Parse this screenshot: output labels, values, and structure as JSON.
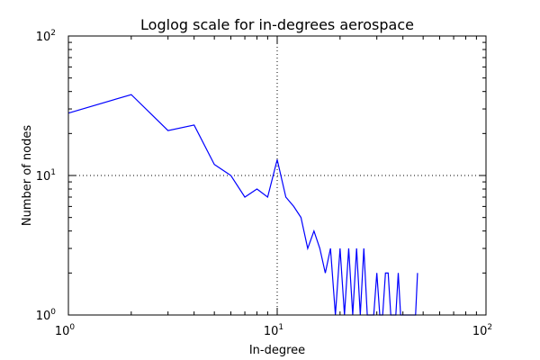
{
  "chart_data": {
    "type": "line",
    "title": "Loglog scale for in-degrees aerospace",
    "xlabel": "In-degree",
    "ylabel": "Number of nodes",
    "xscale": "log",
    "yscale": "log",
    "xlim": [
      1,
      100
    ],
    "ylim": [
      1,
      100
    ],
    "grid": "major ticks, dotted",
    "x_ticks": [
      {
        "value": 1,
        "base": "10",
        "exp": "0"
      },
      {
        "value": 10,
        "base": "10",
        "exp": "1"
      },
      {
        "value": 100,
        "base": "10",
        "exp": "2"
      }
    ],
    "y_ticks": [
      {
        "value": 1,
        "base": "10",
        "exp": "0"
      },
      {
        "value": 10,
        "base": "10",
        "exp": "1"
      },
      {
        "value": 100,
        "base": "10",
        "exp": "2"
      }
    ],
    "series": [
      {
        "color": "#0000ff",
        "points": [
          [
            1,
            28
          ],
          [
            2,
            38
          ],
          [
            3,
            21
          ],
          [
            4,
            23
          ],
          [
            5,
            12
          ],
          [
            6,
            10
          ],
          [
            7,
            7
          ],
          [
            8,
            8
          ],
          [
            9,
            7
          ],
          [
            10,
            13
          ],
          [
            11,
            7
          ],
          [
            12,
            6
          ],
          [
            13,
            5
          ],
          [
            14,
            3
          ],
          [
            15,
            4
          ],
          [
            16,
            3
          ],
          [
            17,
            2
          ],
          [
            18,
            3
          ],
          [
            19,
            1
          ],
          [
            20,
            3
          ],
          [
            21,
            1
          ],
          [
            22,
            3
          ],
          [
            23,
            1
          ],
          [
            24,
            3
          ],
          [
            25,
            1
          ],
          [
            26,
            3
          ],
          [
            27,
            1
          ],
          [
            28,
            1
          ],
          [
            29,
            1
          ],
          [
            30,
            2
          ],
          [
            31,
            1
          ],
          [
            32,
            1
          ],
          [
            33,
            2
          ],
          [
            34,
            2
          ],
          [
            35,
            1
          ],
          [
            36,
            1
          ],
          [
            37,
            1
          ],
          [
            38,
            2
          ],
          [
            39,
            1
          ],
          [
            40,
            1
          ],
          [
            41,
            1
          ],
          [
            42,
            1
          ],
          [
            43,
            1
          ],
          [
            44,
            1
          ],
          [
            45,
            1
          ],
          [
            46,
            1
          ],
          [
            47,
            2
          ]
        ]
      }
    ]
  }
}
